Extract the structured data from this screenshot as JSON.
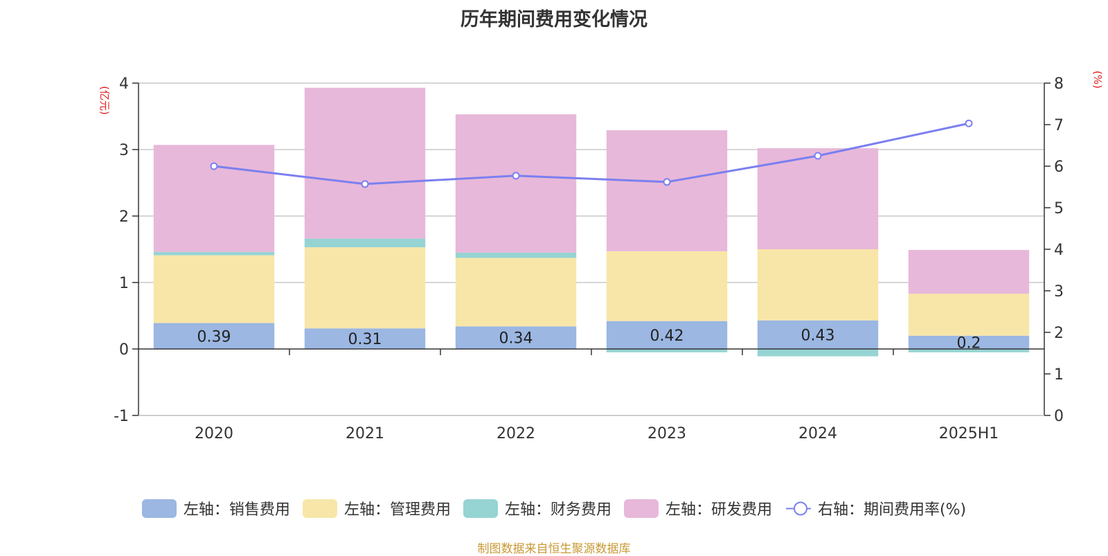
{
  "chart_data": {
    "type": "bar",
    "stacked": true,
    "title": "历年期间费用变化情况",
    "categories": [
      "2020",
      "2021",
      "2022",
      "2023",
      "2024",
      "2025H1"
    ],
    "left_axis": {
      "unit": "(亿元)",
      "ylim": [
        -1,
        4
      ],
      "ticks": [
        "-1",
        "0",
        "1",
        "2",
        "3",
        "4"
      ]
    },
    "right_axis": {
      "unit": "(%)",
      "ylim": [
        0,
        8
      ],
      "ticks": [
        "0",
        "1",
        "2",
        "3",
        "4",
        "5",
        "6",
        "7",
        "8"
      ]
    },
    "series": [
      {
        "name": "左轴：销售费用",
        "color": "#9bb7e2",
        "values": [
          0.39,
          0.31,
          0.34,
          0.42,
          0.43,
          0.2
        ]
      },
      {
        "name": "左轴：管理费用",
        "color": "#f8e6a8",
        "values": [
          1.02,
          1.22,
          1.03,
          1.05,
          1.07,
          0.63
        ]
      },
      {
        "name": "左轴：财务费用",
        "color": "#96d3d3",
        "values": [
          0.05,
          0.13,
          0.08,
          -0.05,
          -0.11,
          -0.05
        ]
      },
      {
        "name": "左轴：研发费用",
        "color": "#e7b8d9",
        "values": [
          1.61,
          2.27,
          2.08,
          1.82,
          1.52,
          0.66
        ]
      }
    ],
    "line": {
      "name": "右轴：期间费用率(%)",
      "color": "#7b7ff0",
      "values": [
        6.0,
        5.57,
        5.77,
        5.62,
        6.25,
        7.03
      ]
    },
    "data_labels": [
      "0.39",
      "0.31",
      "0.34",
      "0.42",
      "0.43",
      "0.2"
    ],
    "grid": true,
    "legend_position": "bottom"
  },
  "footer": {
    "source": "制图数据来自恒生聚源数据库"
  }
}
